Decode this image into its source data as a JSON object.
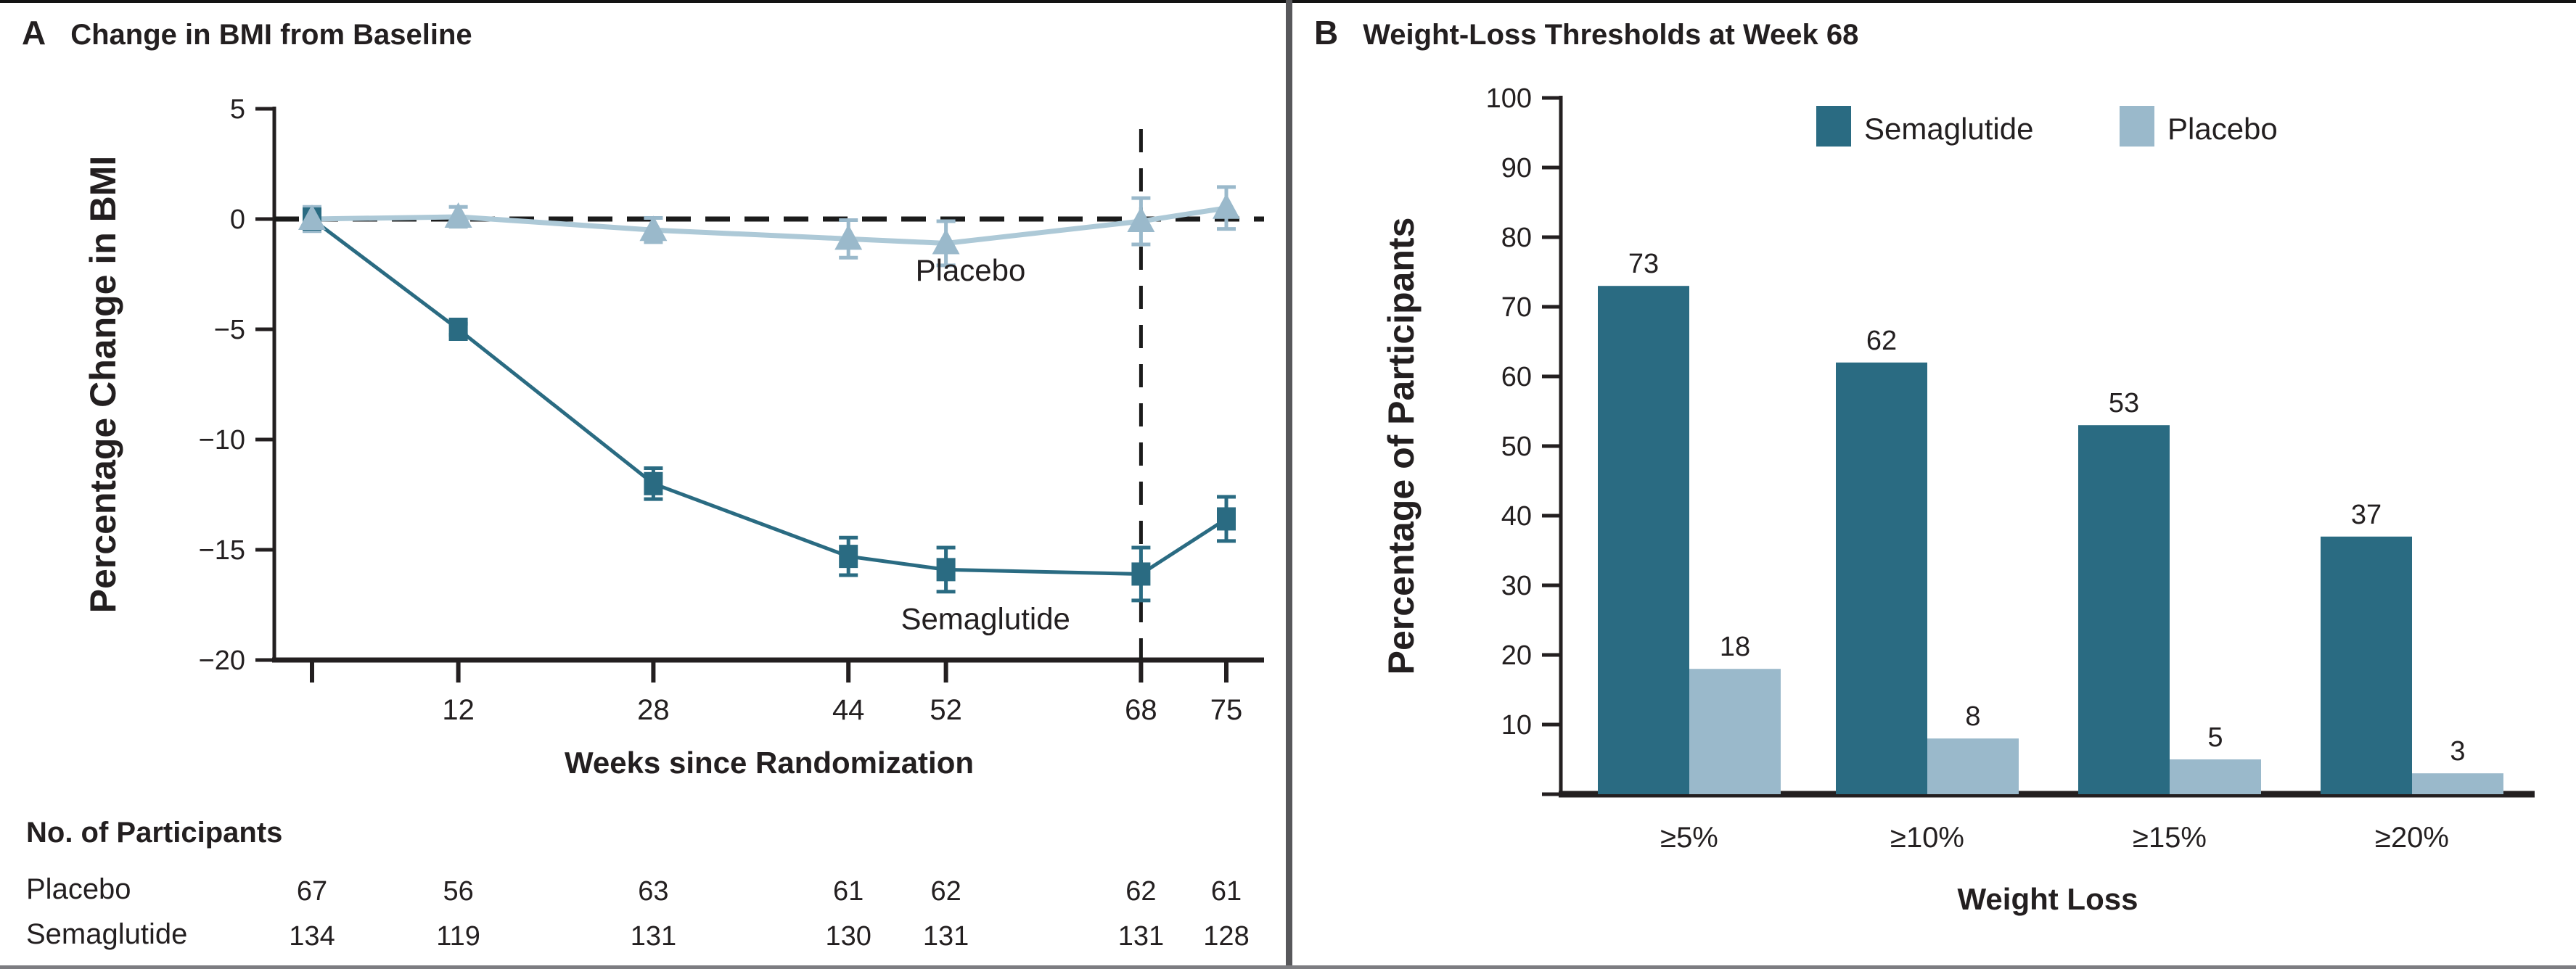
{
  "panel_a": {
    "letter": "A",
    "title": "Change in BMI from Baseline",
    "y_axis_label": "Percentage Change in BMI",
    "x_axis_label": "Weeks since Randomization",
    "participants_header": "No. of Participants",
    "row_labels": [
      "Placebo",
      "Semaglutide"
    ]
  },
  "panel_b": {
    "letter": "B",
    "title": "Weight-Loss Thresholds at Week 68",
    "y_axis_label": "Percentage of Participants",
    "x_axis_label": "Weight Loss"
  },
  "colors": {
    "semaglutide": "#2a6b82",
    "placebo_fill": "#9ab9cb",
    "placebo_line": "#adc9d7",
    "axis": "#231f20",
    "dashed": "#1b1b1b"
  },
  "chart_data": [
    {
      "type": "line",
      "panel": "A",
      "title": "Change in BMI from Baseline",
      "xlabel": "Weeks since Randomization",
      "ylabel": "Percentage Change in BMI",
      "x": [
        0,
        12,
        28,
        44,
        52,
        68,
        75
      ],
      "xticks": [
        0,
        12,
        28,
        44,
        52,
        68,
        75
      ],
      "yticks": [
        5,
        0,
        -5,
        -10,
        -15,
        -20
      ],
      "xlim": [
        0,
        75
      ],
      "ylim": [
        -20,
        5
      ],
      "grid": false,
      "reference_lines": {
        "horizontal_at": 0,
        "vertical_at": 68
      },
      "series": [
        {
          "name": "Semaglutide",
          "marker": "square",
          "values": [
            0,
            -5.0,
            -12.0,
            -15.3,
            -15.9,
            -16.1,
            -13.6
          ],
          "errors": [
            0,
            0.25,
            0.7,
            0.85,
            1.0,
            1.2,
            1.0
          ],
          "label": {
            "week": 48.3,
            "value": -18.6
          }
        },
        {
          "name": "Placebo",
          "marker": "triangle",
          "values": [
            0,
            0.1,
            -0.5,
            -0.9,
            -1.1,
            -0.1,
            0.5
          ],
          "errors": [
            0.55,
            0.45,
            0.55,
            0.85,
            1.0,
            1.05,
            0.95
          ],
          "label": {
            "week": 49.5,
            "value": -2.8
          }
        }
      ],
      "participants": {
        "header": "No. of Participants",
        "rows": [
          {
            "name": "Placebo",
            "values": [
              67,
              56,
              63,
              61,
              62,
              62,
              61
            ]
          },
          {
            "name": "Semaglutide",
            "values": [
              134,
              119,
              131,
              130,
              131,
              131,
              128
            ]
          }
        ]
      }
    },
    {
      "type": "bar",
      "panel": "B",
      "title": "Weight-Loss Thresholds at Week 68",
      "xlabel": "Weight Loss",
      "ylabel": "Percentage of Participants",
      "categories": [
        "≥5%",
        "≥10%",
        "≥15%",
        "≥20%"
      ],
      "yticks": [
        0,
        10,
        20,
        30,
        40,
        50,
        60,
        70,
        80,
        90,
        100
      ],
      "ylim": [
        0,
        100
      ],
      "grid": false,
      "legend_position": "top-inside",
      "series": [
        {
          "name": "Semaglutide",
          "values": [
            73,
            62,
            53,
            37
          ]
        },
        {
          "name": "Placebo",
          "values": [
            18,
            8,
            5,
            3
          ]
        }
      ]
    }
  ]
}
